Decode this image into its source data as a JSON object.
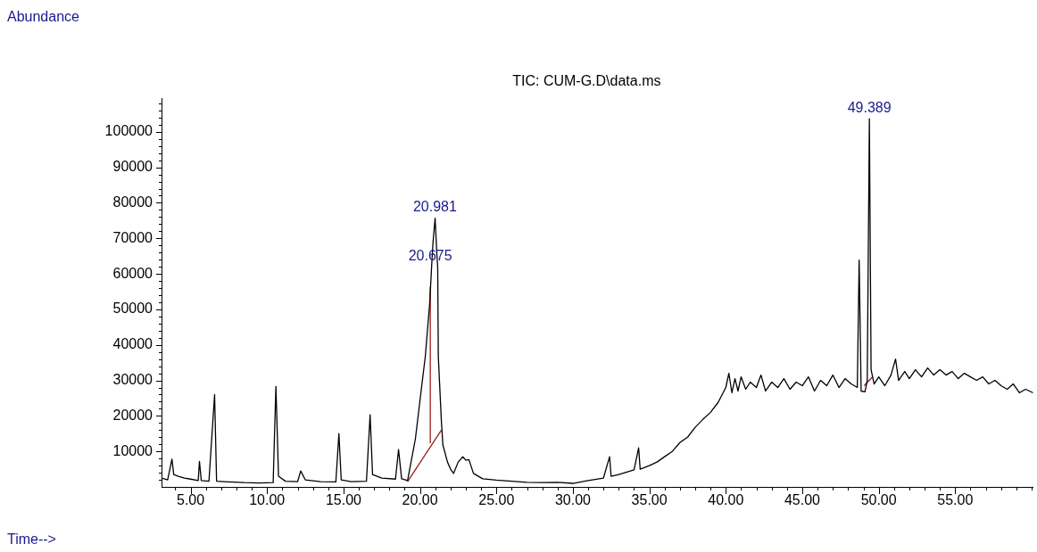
{
  "chart_data": {
    "type": "line",
    "title": "TIC: CUM-G.D\\data.ms",
    "xlabel": "Time-->",
    "xlim": [
      3.1,
      60.1
    ],
    "ylim": [
      0,
      109500
    ],
    "xticks": [
      {
        "value": 4,
        "label": null
      },
      {
        "value": 5,
        "label": "5.00"
      },
      {
        "value": 6,
        "label": null
      },
      {
        "value": 7,
        "label": null
      },
      {
        "value": 8,
        "label": null
      },
      {
        "value": 9,
        "label": null
      },
      {
        "value": 10,
        "label": "10.00"
      },
      {
        "value": 11,
        "label": null
      },
      {
        "value": 12,
        "label": null
      },
      {
        "value": 13,
        "label": null
      },
      {
        "value": 14,
        "label": null
      },
      {
        "value": 15,
        "label": "15.00"
      },
      {
        "value": 16,
        "label": null
      },
      {
        "value": 17,
        "label": null
      },
      {
        "value": 18,
        "label": null
      },
      {
        "value": 19,
        "label": null
      },
      {
        "value": 20,
        "label": "20.00"
      },
      {
        "value": 21,
        "label": null
      },
      {
        "value": 22,
        "label": null
      },
      {
        "value": 23,
        "label": null
      },
      {
        "value": 24,
        "label": null
      },
      {
        "value": 25,
        "label": "25.00"
      },
      {
        "value": 26,
        "label": null
      },
      {
        "value": 27,
        "label": null
      },
      {
        "value": 28,
        "label": null
      },
      {
        "value": 29,
        "label": null
      },
      {
        "value": 30,
        "label": "30.00"
      },
      {
        "value": 31,
        "label": null
      },
      {
        "value": 32,
        "label": null
      },
      {
        "value": 33,
        "label": null
      },
      {
        "value": 34,
        "label": null
      },
      {
        "value": 35,
        "label": "35.00"
      },
      {
        "value": 36,
        "label": null
      },
      {
        "value": 37,
        "label": null
      },
      {
        "value": 38,
        "label": null
      },
      {
        "value": 39,
        "label": null
      },
      {
        "value": 40,
        "label": "40.00"
      },
      {
        "value": 41,
        "label": null
      },
      {
        "value": 42,
        "label": null
      },
      {
        "value": 43,
        "label": null
      },
      {
        "value": 44,
        "label": null
      },
      {
        "value": 45,
        "label": "45.00"
      },
      {
        "value": 46,
        "label": null
      },
      {
        "value": 47,
        "label": null
      },
      {
        "value": 48,
        "label": null
      },
      {
        "value": 49,
        "label": null
      },
      {
        "value": 50,
        "label": "50.00"
      },
      {
        "value": 51,
        "label": null
      },
      {
        "value": 52,
        "label": null
      },
      {
        "value": 53,
        "label": null
      },
      {
        "value": 54,
        "label": null
      },
      {
        "value": 55,
        "label": "55.00"
      },
      {
        "value": 56,
        "label": null
      },
      {
        "value": 57,
        "label": null
      },
      {
        "value": 58,
        "label": null
      },
      {
        "value": 59,
        "label": null
      },
      {
        "value": 60,
        "label": null
      }
    ],
    "yticks": [
      {
        "value": 2000,
        "label": null
      },
      {
        "value": 4000,
        "label": null
      },
      {
        "value": 6000,
        "label": null
      },
      {
        "value": 8000,
        "label": null
      },
      10000,
      {
        "value": 12000,
        "label": null
      },
      {
        "value": 14000,
        "label": null
      },
      {
        "value": 16000,
        "label": null
      },
      {
        "value": 18000,
        "label": null
      },
      20000,
      {
        "value": 22000,
        "label": null
      },
      {
        "value": 24000,
        "label": null
      },
      {
        "value": 26000,
        "label": null
      },
      {
        "value": 28000,
        "label": null
      },
      30000,
      {
        "value": 32000,
        "label": null
      },
      {
        "value": 34000,
        "label": null
      },
      {
        "value": 36000,
        "label": null
      },
      {
        "value": 38000,
        "label": null
      },
      40000,
      {
        "value": 42000,
        "label": null
      },
      {
        "value": 44000,
        "label": null
      },
      {
        "value": 46000,
        "label": null
      },
      {
        "value": 48000,
        "label": null
      },
      50000,
      {
        "value": 52000,
        "label": null
      },
      {
        "value": 54000,
        "label": null
      },
      {
        "value": 56000,
        "label": null
      },
      {
        "value": 58000,
        "label": null
      },
      60000,
      {
        "value": 62000,
        "label": null
      },
      {
        "value": 64000,
        "label": null
      },
      {
        "value": 66000,
        "label": null
      },
      {
        "value": 68000,
        "label": null
      },
      70000,
      {
        "value": 72000,
        "label": null
      },
      {
        "value": 74000,
        "label": null
      },
      {
        "value": 76000,
        "label": null
      },
      {
        "value": 78000,
        "label": null
      },
      80000,
      {
        "value": 82000,
        "label": null
      },
      {
        "value": 84000,
        "label": null
      },
      {
        "value": 86000,
        "label": null
      },
      {
        "value": 88000,
        "label": null
      },
      90000,
      {
        "value": 92000,
        "label": null
      },
      {
        "value": 94000,
        "label": null
      },
      {
        "value": 96000,
        "label": null
      },
      {
        "value": 98000,
        "label": null
      },
      100000,
      {
        "value": 102000,
        "label": null
      },
      {
        "value": 104000,
        "label": null
      },
      {
        "value": 106000,
        "label": null
      },
      {
        "value": 108000,
        "label": null
      }
    ],
    "grid": false,
    "legend": false,
    "marker": "none",
    "line_style": "solid",
    "annotations": [
      "Abundance",
      {
        "text": "20.981",
        "x": 20.981,
        "y": 75700
      },
      {
        "text": "20.675",
        "x": 20.675,
        "y": 61900
      },
      {
        "text": "49.389",
        "x": 49.389,
        "y": 103700
      }
    ],
    "series": [
      {
        "color": "#000000",
        "x": [
          3.1,
          3.5,
          3.78,
          3.9,
          4.2,
          4.6,
          5.0,
          5.5,
          5.58,
          5.7,
          6.2,
          6.57,
          6.7,
          7.5,
          8.5,
          9.5,
          10.4,
          10.58,
          10.75,
          11.2,
          12.0,
          12.2,
          12.5,
          13.5,
          14.5,
          14.7,
          14.85,
          15.5,
          16.5,
          16.74,
          16.9,
          17.5,
          18.4,
          18.6,
          18.8,
          19.19,
          19.7,
          20.0,
          20.35,
          20.64,
          20.76,
          20.85,
          20.99,
          21.1,
          21.16,
          21.2,
          21.4,
          21.5,
          21.8,
          22.0,
          22.2,
          22.5,
          22.8,
          23.0,
          23.2,
          23.5,
          24.1,
          25.0,
          26.0,
          27.0,
          28.0,
          29.0,
          30.0,
          31.0,
          32.0,
          32.4,
          32.5,
          33.0,
          34.0,
          34.3,
          34.4,
          35.0,
          35.5,
          36.0,
          36.5,
          37.0,
          37.5,
          38.0,
          38.5,
          39.0,
          39.5,
          40.0,
          40.2,
          40.4,
          40.6,
          40.8,
          41.0,
          41.3,
          41.6,
          42.0,
          42.3,
          42.6,
          43.0,
          43.4,
          43.8,
          44.2,
          44.6,
          45.0,
          45.4,
          45.8,
          46.2,
          46.6,
          47.0,
          47.4,
          47.8,
          48.2,
          48.6,
          48.72,
          48.85,
          49.1,
          49.25,
          49.389,
          49.5,
          49.7,
          50.0,
          50.4,
          50.8,
          51.1,
          51.3,
          51.7,
          52.0,
          52.4,
          52.8,
          53.2,
          53.6,
          54.0,
          54.4,
          54.8,
          55.2,
          55.6,
          56.0,
          56.4,
          56.8,
          57.2,
          57.6,
          58.0,
          58.4,
          58.8,
          59.2,
          59.6,
          60.1
        ],
        "values": [
          2500,
          2000,
          7800,
          3500,
          3000,
          2500,
          2200,
          1800,
          7200,
          1800,
          1600,
          26000,
          1600,
          1400,
          1200,
          1100,
          1200,
          28300,
          3000,
          1600,
          1500,
          4500,
          2000,
          1500,
          1400,
          15000,
          2000,
          1500,
          1600,
          20300,
          3500,
          2500,
          2200,
          10500,
          2300,
          1800,
          13500,
          24300,
          36800,
          51900,
          61900,
          68700,
          75700,
          66000,
          61900,
          36800,
          18500,
          11800,
          7000,
          5000,
          3800,
          7000,
          8500,
          7500,
          7700,
          3800,
          2300,
          1900,
          1600,
          1300,
          1200,
          1300,
          1000,
          1800,
          2500,
          8500,
          3000,
          3500,
          4800,
          11000,
          5000,
          6000,
          7000,
          8500,
          10000,
          12500,
          14000,
          16800,
          19000,
          21000,
          23800,
          28000,
          32000,
          26500,
          30500,
          27000,
          31000,
          27500,
          29500,
          28000,
          31500,
          27000,
          29500,
          28000,
          30500,
          27500,
          29500,
          28500,
          31000,
          27000,
          30000,
          28500,
          31500,
          28000,
          30500,
          29000,
          28000,
          63900,
          27000,
          26800,
          30000,
          103700,
          33000,
          29000,
          31000,
          28500,
          31500,
          36000,
          30000,
          32500,
          30500,
          33000,
          31000,
          33500,
          31500,
          33000,
          31500,
          32500,
          30500,
          32000,
          31000,
          30000,
          31000,
          29000,
          30000,
          28500,
          27500,
          29000,
          26500,
          27500,
          26500
        ]
      },
      {
        "color": "#9b1b1b",
        "x": [
          19.19,
          21.4
        ],
        "values": [
          1500,
          16000
        ]
      },
      {
        "color": "#9b1b1b",
        "x": [
          20.675,
          20.675
        ],
        "values": [
          12300,
          56400
        ]
      },
      {
        "color": "#9b1b1b",
        "x": [
          49.05,
          49.6
        ],
        "values": [
          28500,
          31000
        ]
      }
    ]
  }
}
